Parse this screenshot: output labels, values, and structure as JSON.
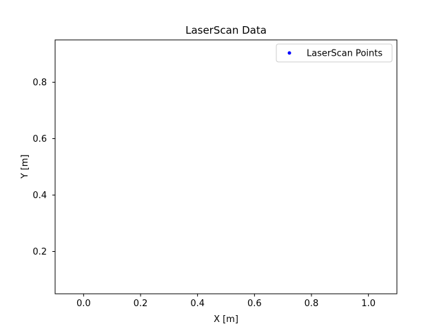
{
  "chart_data": {
    "type": "scatter",
    "title": "LaserScan Data",
    "xlabel": "X [m]",
    "ylabel": "Y [m]",
    "xlim": [
      -0.1,
      1.1
    ],
    "ylim": [
      0.05,
      0.95
    ],
    "xticks": [
      0.0,
      0.2,
      0.4,
      0.6,
      0.8,
      1.0
    ],
    "xtick_labels": [
      "0.0",
      "0.2",
      "0.4",
      "0.6",
      "0.8",
      "1.0"
    ],
    "yticks": [
      0.2,
      0.4,
      0.6,
      0.8
    ],
    "ytick_labels": [
      "0.2",
      "0.4",
      "0.6",
      "0.8"
    ],
    "grid": false,
    "legend_position": "top-right",
    "series": [
      {
        "name": "LaserScan Points",
        "color": "#0000ff",
        "marker": "dot",
        "x": [],
        "y": []
      }
    ]
  }
}
